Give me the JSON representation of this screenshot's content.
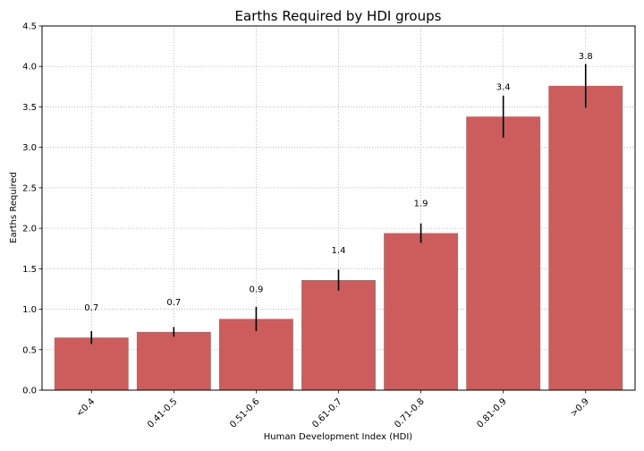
{
  "chart_data": {
    "type": "bar",
    "title": "Earths Required by HDI groups",
    "xlabel": "Human Development Index (HDI)",
    "ylabel": "Earths Required",
    "categories": [
      "<0.4",
      "0.41-0.5",
      "0.51-0.6",
      "0.61-0.7",
      "0.71-0.8",
      "0.81-0.9",
      ">0.9"
    ],
    "values": [
      0.65,
      0.72,
      0.88,
      1.36,
      1.94,
      3.38,
      3.76
    ],
    "errors": [
      0.08,
      0.06,
      0.15,
      0.13,
      0.12,
      0.26,
      0.27
    ],
    "data_labels": [
      "0.7",
      "0.7",
      "0.9",
      "1.4",
      "1.9",
      "3.4",
      "3.8"
    ],
    "ylim": [
      0,
      4.5
    ],
    "yticks": [
      0.0,
      0.5,
      1.0,
      1.5,
      2.0,
      2.5,
      3.0,
      3.5,
      4.0,
      4.5
    ],
    "ytick_labels": [
      "0.0",
      "0.5",
      "1.0",
      "1.5",
      "2.0",
      "2.5",
      "3.0",
      "3.5",
      "4.0",
      "4.5"
    ],
    "grid": true,
    "bar_color": "#cd5c5c",
    "error_color": "#000000"
  }
}
